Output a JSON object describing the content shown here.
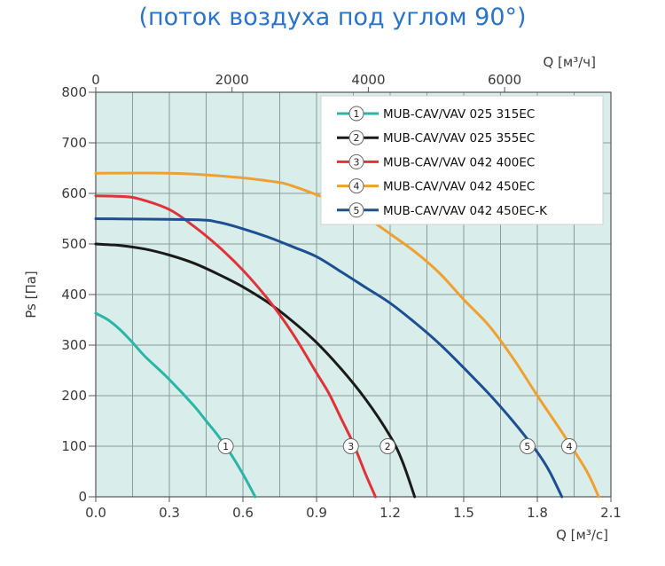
{
  "title": "(поток воздуха под углом 90°)",
  "chart_data": {
    "type": "line",
    "title": "(поток воздуха под углом 90°)",
    "xlabel": "Q [м³/с]",
    "x2label": "Q [м³/ч]",
    "ylabel": "Ps [Па]",
    "xlim": [
      0,
      2.1
    ],
    "ylim": [
      0,
      800
    ],
    "x2lim": [
      0,
      7560
    ],
    "x_ticks": [
      "0.0",
      "0.3",
      "0.6",
      "0.9",
      "1.2",
      "1.5",
      "1.8",
      "2.1"
    ],
    "x2_ticks": [
      "0",
      "2000",
      "4000",
      "6000"
    ],
    "y_ticks": [
      "0",
      "100",
      "200",
      "300",
      "400",
      "500",
      "600",
      "700",
      "800"
    ],
    "grid": true,
    "legend_position": "top-right",
    "series": [
      {
        "name": "MUB-CAV/VAV 025 315EC",
        "marker": "1",
        "color": "#2bb5a6",
        "marker_at": [
          0.53,
          100
        ],
        "points": [
          [
            0,
            363
          ],
          [
            0.05,
            350
          ],
          [
            0.1,
            330
          ],
          [
            0.15,
            305
          ],
          [
            0.2,
            278
          ],
          [
            0.3,
            232
          ],
          [
            0.4,
            180
          ],
          [
            0.45,
            150
          ],
          [
            0.5,
            120
          ],
          [
            0.55,
            85
          ],
          [
            0.6,
            45
          ],
          [
            0.65,
            0
          ]
        ]
      },
      {
        "name": "MUB-CAV/VAV 025 355EC",
        "marker": "2",
        "color": "#1a1a1a",
        "marker_at": [
          1.19,
          100
        ],
        "points": [
          [
            0,
            500
          ],
          [
            0.1,
            497
          ],
          [
            0.2,
            490
          ],
          [
            0.3,
            478
          ],
          [
            0.4,
            462
          ],
          [
            0.5,
            440
          ],
          [
            0.6,
            415
          ],
          [
            0.7,
            385
          ],
          [
            0.8,
            348
          ],
          [
            0.9,
            305
          ],
          [
            1.0,
            253
          ],
          [
            1.1,
            193
          ],
          [
            1.2,
            120
          ],
          [
            1.25,
            70
          ],
          [
            1.3,
            0
          ]
        ]
      },
      {
        "name": "MUB-CAV/VAV 042 400EC",
        "marker": "3",
        "color": "#e03238",
        "marker_at": [
          1.04,
          100
        ],
        "points": [
          [
            0,
            595
          ],
          [
            0.1,
            594
          ],
          [
            0.17,
            590
          ],
          [
            0.3,
            568
          ],
          [
            0.4,
            535
          ],
          [
            0.5,
            495
          ],
          [
            0.6,
            448
          ],
          [
            0.7,
            392
          ],
          [
            0.8,
            325
          ],
          [
            0.9,
            245
          ],
          [
            0.95,
            205
          ],
          [
            1.0,
            155
          ],
          [
            1.05,
            105
          ],
          [
            1.1,
            45
          ],
          [
            1.14,
            0
          ]
        ]
      },
      {
        "name": "MUB-CAV/VAV 042 450EC",
        "marker": "4",
        "color": "#f0a030",
        "marker_at": [
          1.93,
          100
        ],
        "points": [
          [
            0,
            640
          ],
          [
            0.3,
            640
          ],
          [
            0.5,
            635
          ],
          [
            0.7,
            625
          ],
          [
            0.8,
            615
          ],
          [
            1.0,
            578
          ],
          [
            1.1,
            553
          ],
          [
            1.2,
            520
          ],
          [
            1.3,
            485
          ],
          [
            1.4,
            443
          ],
          [
            1.5,
            390
          ],
          [
            1.6,
            340
          ],
          [
            1.7,
            275
          ],
          [
            1.8,
            200
          ],
          [
            1.9,
            128
          ],
          [
            2.0,
            52
          ],
          [
            2.05,
            0
          ]
        ]
      },
      {
        "name": "MUB-CAV/VAV 042 450EC-K",
        "marker": "5",
        "color": "#1e4f93",
        "marker_at": [
          1.76,
          100
        ],
        "points": [
          [
            0,
            550
          ],
          [
            0.4,
            548
          ],
          [
            0.5,
            543
          ],
          [
            0.6,
            530
          ],
          [
            0.7,
            514
          ],
          [
            0.8,
            495
          ],
          [
            0.9,
            475
          ],
          [
            1.0,
            445
          ],
          [
            1.1,
            414
          ],
          [
            1.2,
            383
          ],
          [
            1.3,
            345
          ],
          [
            1.4,
            303
          ],
          [
            1.5,
            255
          ],
          [
            1.6,
            205
          ],
          [
            1.7,
            150
          ],
          [
            1.8,
            88
          ],
          [
            1.85,
            50
          ],
          [
            1.9,
            0
          ]
        ]
      }
    ]
  }
}
